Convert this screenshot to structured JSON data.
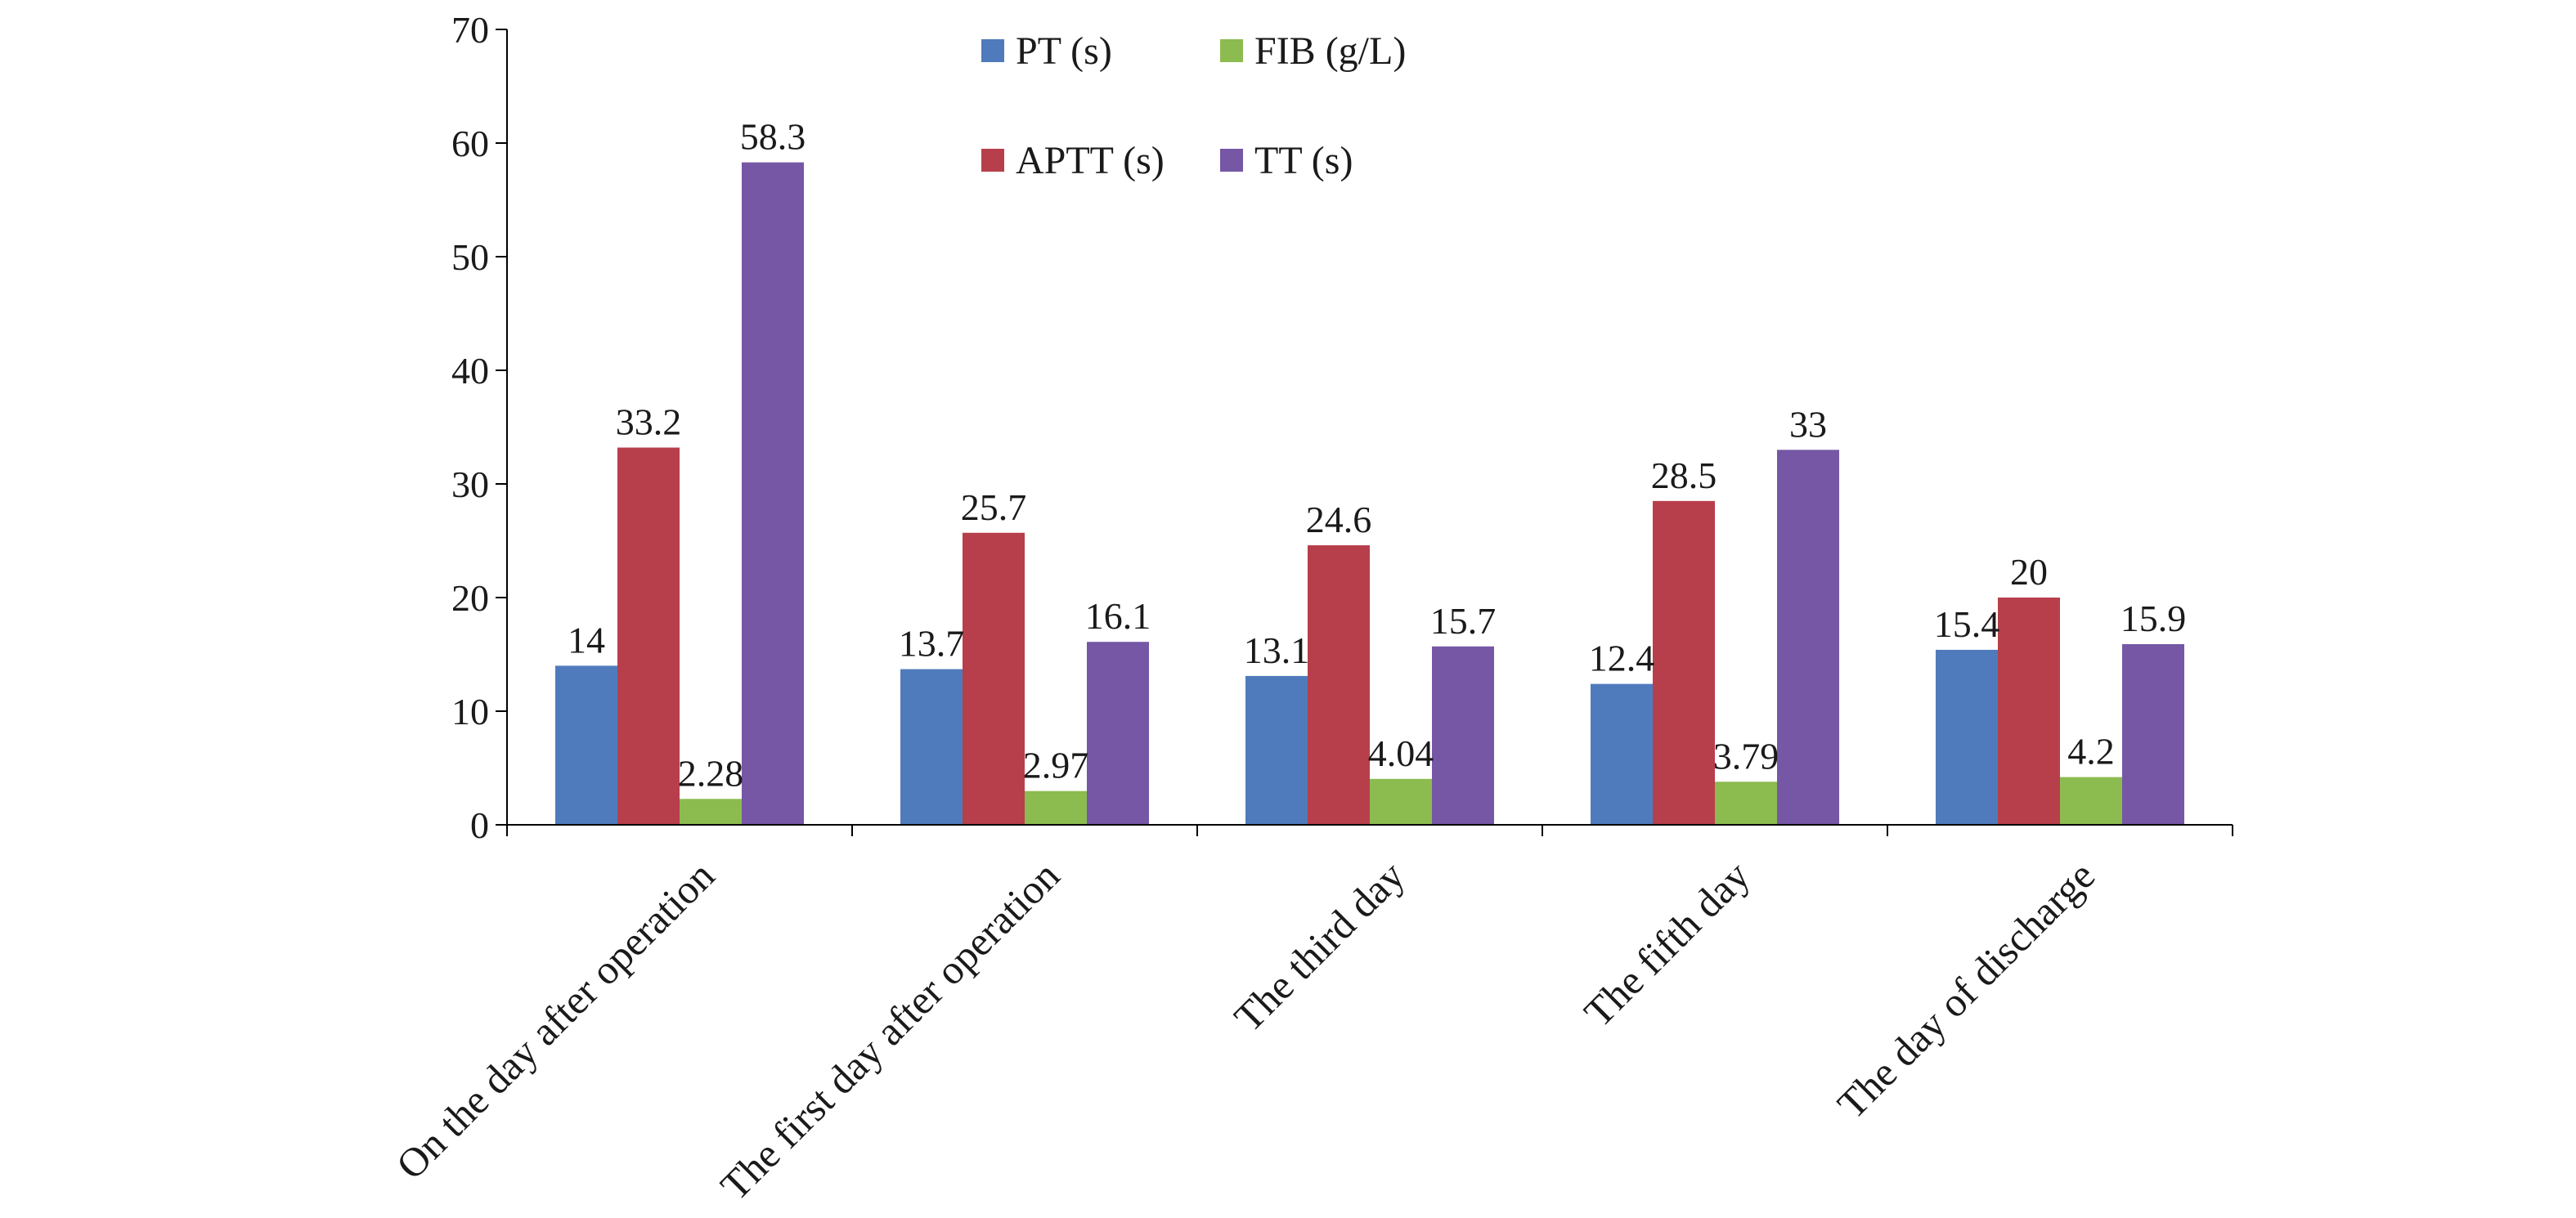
{
  "chart_data": {
    "type": "bar",
    "title": "",
    "xlabel": "",
    "ylabel": "",
    "ylim": [
      0,
      70
    ],
    "yticks": [
      0,
      10,
      20,
      30,
      40,
      50,
      60,
      70
    ],
    "grid": false,
    "legend_position": "top-center",
    "categories": [
      "On the day after operation",
      "The first day after operation",
      "The third day",
      "The fifth day",
      "The day of discharge"
    ],
    "series": [
      {
        "name": "PT (s)",
        "color": "#4f7bbc",
        "values": [
          14,
          13.7,
          13.1,
          12.4,
          15.4
        ]
      },
      {
        "name": "APTT (s)",
        "color": "#b73f4b",
        "values": [
          33.2,
          25.7,
          24.6,
          28.5,
          20
        ]
      },
      {
        "name": "FIB (g/L)",
        "color": "#8cbb50",
        "values": [
          2.28,
          2.97,
          4.04,
          3.79,
          4.2
        ]
      },
      {
        "name": "TT (s)",
        "color": "#7557a5",
        "values": [
          58.3,
          16.1,
          15.7,
          33,
          15.9
        ]
      }
    ],
    "data_labels": [
      [
        "14",
        "13.7",
        "13.1",
        "12.4",
        "15.4"
      ],
      [
        "33.2",
        "25.7",
        "24.6",
        "28.5",
        "20"
      ],
      [
        "2.28",
        "2.97",
        "4.04",
        "3.79",
        "4.2"
      ],
      [
        "58.3",
        "16.1",
        "15.7",
        "33",
        "15.9"
      ]
    ]
  }
}
